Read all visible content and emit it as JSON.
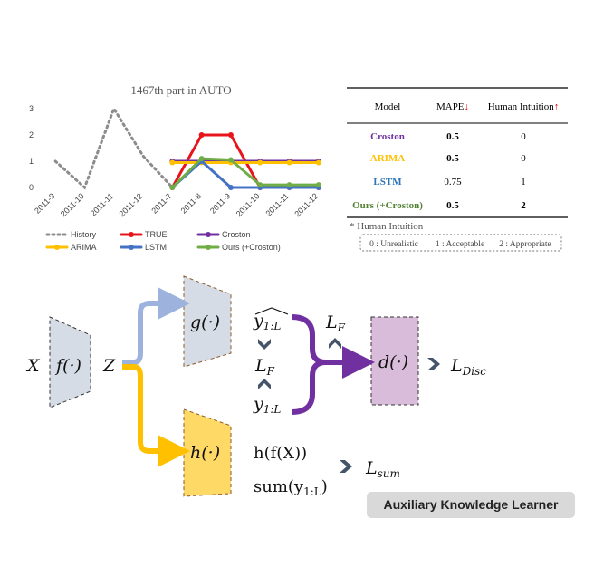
{
  "chart_data": {
    "type": "line",
    "title": "1467th part in AUTO",
    "categories": [
      "2011-9",
      "2011-10",
      "2011-11",
      "2011-12",
      "2011-7",
      "2011-8",
      "2011-9",
      "2011-10",
      "2011-11",
      "2011-12"
    ],
    "series": [
      {
        "name": "History",
        "color": "#8c8c8c",
        "dash": true,
        "values": [
          1,
          0,
          3,
          1.2,
          0,
          null,
          null,
          null,
          null,
          null
        ]
      },
      {
        "name": "TRUE",
        "color": "#e8141b",
        "values": [
          null,
          null,
          null,
          null,
          0,
          2,
          2,
          0,
          0,
          0
        ]
      },
      {
        "name": "Croston",
        "color": "#7030a0",
        "values": [
          null,
          null,
          null,
          null,
          1,
          1,
          1,
          1,
          1,
          1
        ]
      },
      {
        "name": "ARIMA",
        "color": "#ffc000",
        "values": [
          null,
          null,
          null,
          null,
          0.95,
          0.95,
          0.95,
          0.95,
          0.95,
          0.95
        ]
      },
      {
        "name": "LSTM",
        "color": "#4472c4",
        "values": [
          null,
          null,
          null,
          null,
          0,
          1,
          0,
          0,
          0,
          0
        ]
      },
      {
        "name": "Ours (+Croston)",
        "color": "#70ad47",
        "values": [
          null,
          null,
          null,
          null,
          0,
          1.1,
          1.05,
          0.1,
          0.1,
          0.1
        ]
      }
    ],
    "ylim": [
      0,
      3
    ],
    "yticks": [
      0,
      1,
      2,
      3
    ],
    "legend": "bottom"
  },
  "table": {
    "headers": [
      {
        "text": "Model"
      },
      {
        "text": "MAPE",
        "arrow": "↓"
      },
      {
        "text": "Human Intuition",
        "arrow": "↑"
      }
    ],
    "rows": [
      [
        "Croston",
        "0.5",
        "0"
      ],
      [
        "ARIMA",
        "0.5",
        "0"
      ],
      [
        "LSTM",
        "0.75",
        "1"
      ],
      [
        "Ours (+Croston)",
        "0.5",
        "2"
      ]
    ],
    "row_colors": [
      "#7030a0",
      "#ffc000",
      "#2e75b6",
      "#548235"
    ],
    "note": "* Human Intuition",
    "scale": [
      "0 : Unrealistic",
      "1 : Acceptable",
      "2 : Appropriate"
    ]
  },
  "diagram": {
    "x": "X",
    "f": "f(·)",
    "z": "Z",
    "g": "g(·)",
    "h": "h(·)",
    "d": "d(·)",
    "y_hat": {
      "base": "y",
      "sub": "1:L"
    },
    "lf1": {
      "base": "L",
      "sub": "F"
    },
    "y": {
      "base": "y",
      "sub": "1:L"
    },
    "lf2": {
      "base": "L",
      "sub": "F"
    },
    "ldisc": {
      "base": "L",
      "sub": "Disc"
    },
    "hfx": "h(f(X))",
    "sum": {
      "pre": "sum(y",
      "sub": "1:L",
      "post": ")"
    },
    "lsum": {
      "base": "L",
      "sub": "sum"
    },
    "box": "Auxiliary Knowledge Learner"
  }
}
